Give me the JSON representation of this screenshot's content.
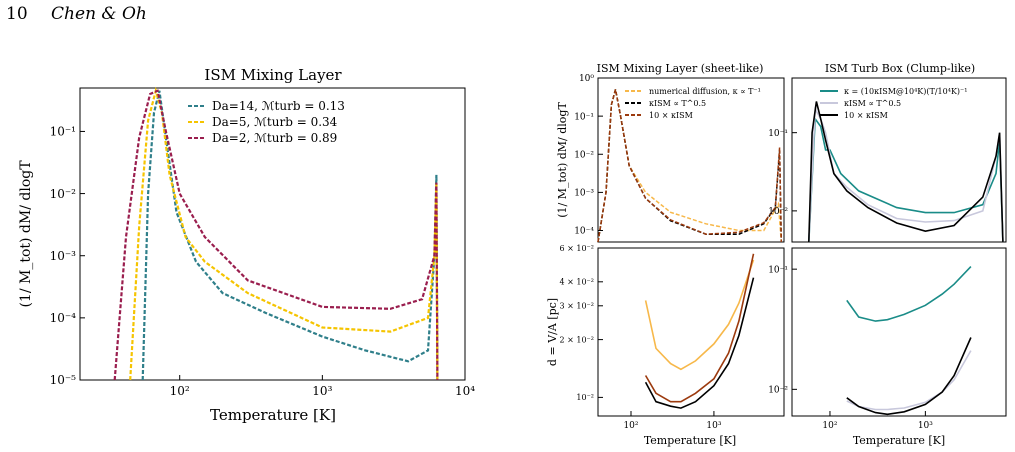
{
  "header": {
    "page_number": "10",
    "authors": "Chen & Oh"
  },
  "colors": {
    "teal": "#2f7f8a",
    "yellow": "#f5c400",
    "maroon": "#9a1e4e",
    "orange": "#f7b84a",
    "black": "#000000",
    "brown": "#9c3a0e",
    "cyan": "#1a8c88",
    "lavender": "#c8c8dc"
  },
  "figure_left": {
    "title": "ISM Mixing Layer",
    "xlabel": "Temperature [K]",
    "ylabel": "(1/ M_tot) dM/ dlogT",
    "xticks": [
      "10²",
      "10³",
      "10⁴"
    ],
    "yticks": [
      "10⁻¹",
      "10⁻²",
      "10⁻³",
      "10⁻⁴",
      "10⁻⁵"
    ],
    "legend": [
      "Da=14, ℳturb = 0.13",
      "Da=5, ℳturb = 0.34",
      "Da=2, ℳturb = 0.89"
    ]
  },
  "figure_right": {
    "title_left": "ISM Mixing Layer (sheet-like)",
    "title_right": "ISM Turb Box (Clump-like)",
    "ylabel_top": "(1/ M_tot) dM/ dlogT",
    "ylabel_bottom": "d = V/A [pc]",
    "xlabel": "Temperature [K]",
    "xticks": [
      "10²",
      "10³"
    ],
    "tl_yticks": [
      "10⁰",
      "10⁻¹",
      "10⁻²",
      "10⁻³",
      "10⁻⁴"
    ],
    "tr_yticks": [
      "10⁻¹",
      "10⁻²"
    ],
    "bl_yticks": [
      "6 × 10⁻²",
      "4 × 10⁻²",
      "3 × 10⁻²",
      "2 × 10⁻²",
      "10⁻²"
    ],
    "br_yticks": [
      "10⁻¹",
      "10⁻²"
    ],
    "legend_tl": [
      "numerical diffusion, κ ∝ T⁻¹",
      "κISM ∝ T^0.5",
      "10 × κISM"
    ],
    "legend_tr": [
      "κ = (10κISM@10⁴K)(T/10⁴K)⁻¹",
      "κISM ∝ T^0.5",
      "10 × κISM"
    ]
  },
  "chart_data": [
    {
      "type": "line",
      "title": "ISM Mixing Layer",
      "xlabel": "Temperature [K]",
      "ylabel": "(1/ M_tot) dM/ dlogT",
      "xscale": "log",
      "yscale": "log",
      "xlim": [
        20,
        10000
      ],
      "ylim": [
        1e-05,
        0.5
      ],
      "legend_position": "top-right",
      "series": [
        {
          "name": "Da=14, ℳturb = 0.13",
          "color": "#2f7f8a",
          "style": "dashed",
          "x": [
            55,
            60,
            66,
            72,
            80,
            95,
            130,
            200,
            400,
            1000,
            2000,
            4000,
            5500,
            6100,
            6300,
            6400
          ],
          "y": [
            1e-05,
            0.01,
            0.2,
            0.45,
            0.08,
            0.005,
            0.0008,
            0.00025,
            0.00012,
            5e-05,
            3e-05,
            2e-05,
            3e-05,
            0.001,
            0.02,
            1e-05
          ]
        },
        {
          "name": "Da=5, ℳturb = 0.34",
          "color": "#f5c400",
          "style": "dashed",
          "x": [
            45,
            52,
            60,
            68,
            75,
            85,
            110,
            150,
            300,
            1000,
            3000,
            5500,
            6100,
            6300,
            6400
          ],
          "y": [
            1e-05,
            0.003,
            0.15,
            0.45,
            0.2,
            0.02,
            0.002,
            0.0008,
            0.00025,
            7e-05,
            6e-05,
            0.0001,
            0.001,
            0.015,
            1e-05
          ]
        },
        {
          "name": "Da=2, ℳturb = 0.89",
          "color": "#9a1e4e",
          "style": "dashed",
          "x": [
            35,
            42,
            52,
            62,
            70,
            80,
            100,
            150,
            300,
            1000,
            3000,
            5000,
            6100,
            6300,
            6400
          ],
          "y": [
            1e-05,
            0.002,
            0.08,
            0.4,
            0.45,
            0.1,
            0.01,
            0.002,
            0.0004,
            0.00015,
            0.00014,
            0.0002,
            0.001,
            0.015,
            1e-05
          ]
        }
      ]
    },
    {
      "type": "line",
      "title": "ISM Mixing Layer (sheet-like)",
      "ylabel": "(1/ M_tot) dM/ dlogT",
      "xscale": "log",
      "yscale": "log",
      "xlim": [
        40,
        7000
      ],
      "ylim": [
        5e-05,
        1
      ],
      "legend_position": "top-right",
      "series": [
        {
          "name": "numerical diffusion, κ ∝ T⁻¹",
          "color": "#f7b84a",
          "style": "dashed",
          "x": [
            40,
            50,
            58,
            65,
            75,
            95,
            150,
            300,
            800,
            2000,
            4000,
            6000,
            6500
          ],
          "y": [
            5e-05,
            0.001,
            0.2,
            0.5,
            0.1,
            0.005,
            0.001,
            0.0003,
            0.00015,
            0.0001,
            0.0001,
            0.0005,
            5e-05
          ]
        },
        {
          "name": "κISM ∝ T^0.5",
          "color": "#000000",
          "style": "dashed",
          "x": [
            40,
            50,
            58,
            65,
            75,
            95,
            150,
            300,
            800,
            2000,
            4000,
            5500,
            6200,
            6500
          ],
          "y": [
            5e-05,
            0.001,
            0.2,
            0.5,
            0.1,
            0.005,
            0.0007,
            0.00018,
            8e-05,
            8e-05,
            0.00015,
            0.0004,
            0.012,
            5e-05
          ]
        },
        {
          "name": "10 × κISM",
          "color": "#9c3a0e",
          "style": "dashed",
          "x": [
            40,
            50,
            58,
            65,
            75,
            95,
            150,
            300,
            800,
            2000,
            4000,
            5500,
            6200,
            6500
          ],
          "y": [
            5e-05,
            0.001,
            0.2,
            0.5,
            0.1,
            0.005,
            0.0007,
            0.00019,
            8e-05,
            9e-05,
            0.00016,
            0.0004,
            0.015,
            5e-05
          ]
        }
      ]
    },
    {
      "type": "line",
      "title": "ISM Turb Box (Clump-like)",
      "xscale": "log",
      "yscale": "log",
      "xlim": [
        40,
        7000
      ],
      "ylim": [
        0.004,
        0.5
      ],
      "legend_position": "top-right",
      "series": [
        {
          "name": "κ = (10κISM@10⁴K)(T/10⁴K)⁻¹",
          "color": "#1a8c88",
          "style": "solid",
          "x": [
            60,
            70,
            80,
            90,
            100,
            130,
            200,
            500,
            1000,
            2000,
            4000,
            5500,
            6000,
            6500
          ],
          "y": [
            0.004,
            0.15,
            0.12,
            0.06,
            0.06,
            0.03,
            0.018,
            0.011,
            0.0095,
            0.0095,
            0.012,
            0.03,
            0.08,
            0.004
          ]
        },
        {
          "name": "κISM ∝ T^0.5",
          "color": "#c8c8dc",
          "style": "solid",
          "x": [
            60,
            70,
            80,
            90,
            110,
            150,
            250,
            500,
            1000,
            2000,
            4000,
            5500,
            6000,
            6500
          ],
          "y": [
            0.004,
            0.2,
            0.15,
            0.1,
            0.03,
            0.02,
            0.012,
            0.008,
            0.0072,
            0.0075,
            0.01,
            0.05,
            0.1,
            0.004
          ]
        },
        {
          "name": "10 × κISM",
          "color": "#000000",
          "style": "solid",
          "x": [
            60,
            65,
            72,
            80,
            90,
            110,
            150,
            250,
            500,
            1000,
            2000,
            4000,
            5500,
            6000,
            6500
          ],
          "y": [
            0.004,
            0.1,
            0.25,
            0.15,
            0.08,
            0.03,
            0.018,
            0.011,
            0.007,
            0.0055,
            0.0065,
            0.015,
            0.05,
            0.1,
            0.004
          ]
        }
      ]
    },
    {
      "type": "line",
      "ylabel": "d = V/A [pc]",
      "xlabel": "Temperature [K]",
      "xscale": "log",
      "yscale": "log",
      "xlim": [
        40,
        7000
      ],
      "ylim": [
        0.008,
        0.06
      ],
      "series": [
        {
          "name": "numerical diffusion, κ ∝ T⁻¹",
          "color": "#f7b84a",
          "style": "solid",
          "x": [
            150,
            200,
            300,
            400,
            600,
            1000,
            1500,
            2000,
            3000
          ],
          "y": [
            0.032,
            0.018,
            0.015,
            0.014,
            0.0155,
            0.019,
            0.024,
            0.031,
            0.052
          ]
        },
        {
          "name": "κISM ∝ T^0.5",
          "color": "#000000",
          "style": "solid",
          "x": [
            150,
            200,
            300,
            400,
            600,
            1000,
            1500,
            2000,
            3000
          ],
          "y": [
            0.012,
            0.0095,
            0.009,
            0.0088,
            0.0095,
            0.0115,
            0.015,
            0.021,
            0.042
          ]
        },
        {
          "name": "10 × κISM",
          "color": "#9c3a0e",
          "style": "solid",
          "x": [
            150,
            200,
            300,
            400,
            600,
            1000,
            1500,
            2000,
            3000
          ],
          "y": [
            0.013,
            0.0105,
            0.0095,
            0.0095,
            0.0105,
            0.0125,
            0.017,
            0.025,
            0.056
          ]
        }
      ]
    },
    {
      "type": "line",
      "xlabel": "Temperature [K]",
      "xscale": "log",
      "yscale": "log",
      "xlim": [
        40,
        7000
      ],
      "ylim": [
        0.006,
        0.15
      ],
      "series": [
        {
          "name": "κ = (10κISM@10⁴K)(T/10⁴K)⁻¹",
          "color": "#1a8c88",
          "style": "solid",
          "x": [
            150,
            200,
            300,
            400,
            600,
            1000,
            1500,
            2000,
            3000
          ],
          "y": [
            0.055,
            0.04,
            0.037,
            0.038,
            0.042,
            0.05,
            0.062,
            0.075,
            0.105
          ]
        },
        {
          "name": "κISM ∝ T^0.5",
          "color": "#c8c8dc",
          "style": "solid",
          "x": [
            150,
            200,
            300,
            400,
            600,
            1000,
            1500,
            2000,
            3000
          ],
          "y": [
            0.008,
            0.0072,
            0.0068,
            0.0068,
            0.007,
            0.0078,
            0.0095,
            0.012,
            0.021
          ]
        },
        {
          "name": "10 × κISM",
          "color": "#000000",
          "style": "solid",
          "x": [
            150,
            200,
            300,
            400,
            600,
            1000,
            1500,
            2000,
            3000
          ],
          "y": [
            0.0085,
            0.0072,
            0.0064,
            0.0062,
            0.0065,
            0.0075,
            0.0095,
            0.013,
            0.027
          ]
        }
      ]
    }
  ]
}
